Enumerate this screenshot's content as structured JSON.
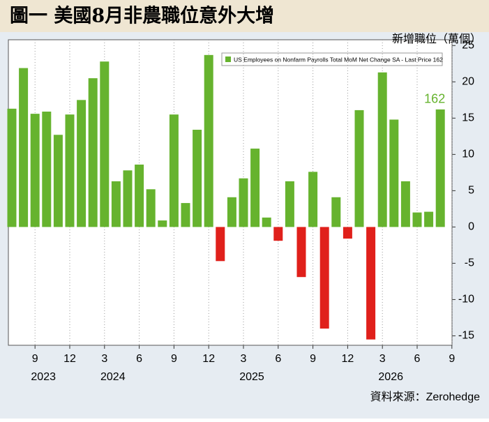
{
  "chart_data": {
    "type": "bar",
    "title": "圖一 美國8月非農職位意外大增",
    "y_label": "新增職位（萬個）",
    "legend_label": "US Employees on Nonfarm Payrolls Total MoM Net Change SA - Last Price 162",
    "source": "資料來源：Zerohedge",
    "categories": [
      null,
      null,
      "9",
      null,
      null,
      "12",
      null,
      null,
      "3",
      null,
      null,
      "6",
      null,
      null,
      "9",
      null,
      null,
      "12",
      null,
      null,
      "3",
      null,
      null,
      "6",
      null,
      null,
      "9",
      null,
      null,
      "12",
      null,
      null,
      "3",
      null,
      null,
      "6",
      null,
      null,
      "9"
    ],
    "years": [
      null,
      null,
      "2023",
      null,
      null,
      null,
      null,
      null,
      "2024",
      null,
      null,
      null,
      null,
      null,
      null,
      null,
      null,
      null,
      null,
      null,
      "2025",
      null,
      null,
      null,
      null,
      null,
      null,
      null,
      null,
      null,
      null,
      null,
      "2026",
      null,
      null,
      null,
      null,
      null,
      null
    ],
    "values": [
      16.3,
      21.9,
      15.6,
      15.9,
      12.7,
      15.5,
      17.5,
      20.5,
      22.8,
      6.3,
      7.8,
      8.6,
      5.2,
      0.9,
      15.5,
      3.3,
      13.4,
      23.7,
      -4.7,
      4.1,
      6.7,
      10.8,
      1.3,
      -1.9,
      6.3,
      -6.9,
      7.6,
      -14.0,
      4.1,
      -1.6,
      16.1,
      -15.5,
      21.3,
      14.8,
      6.3,
      2.0,
      2.1,
      16.2,
      null
    ],
    "value_labels": [
      null,
      null,
      null,
      null,
      null,
      null,
      null,
      null,
      null,
      null,
      null,
      null,
      null,
      null,
      null,
      null,
      null,
      null,
      null,
      null,
      null,
      null,
      null,
      null,
      null,
      null,
      null,
      null,
      null,
      null,
      null,
      null,
      null,
      null,
      null,
      null,
      null,
      "162",
      null
    ],
    "positive_color": "#66b32e",
    "negative_color": "#e0201b",
    "ylim": [
      -16.3,
      25.8
    ],
    "yticks": [
      -15,
      -10,
      -5,
      0,
      5,
      10,
      15,
      20,
      25
    ],
    "grid": true
  }
}
